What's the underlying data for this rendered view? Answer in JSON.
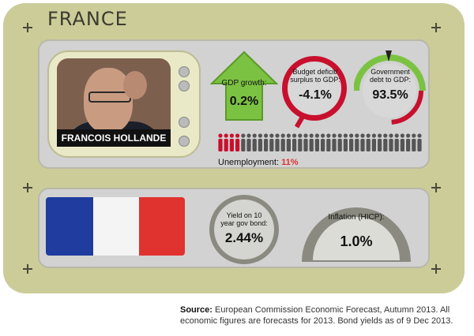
{
  "country": "FRANCE",
  "leader": {
    "name": "FRANCOIS HOLLANDE"
  },
  "gdp_growth": {
    "label": "GDP growth:",
    "value": "0.2%"
  },
  "budget": {
    "label_line1": "Budget deficit/",
    "label_line2": "surplus to GDP:",
    "value": "-4.1%"
  },
  "debt": {
    "label_line1": "Government",
    "label_line2": "debt to GDP:",
    "value": "93.5%"
  },
  "unemployment": {
    "label": "Unemployment:",
    "value": "11%",
    "value_fraction": 0.11
  },
  "bond_yield": {
    "label_line1": "Yield on 10",
    "label_line2": "year gov bond:",
    "value": "2.44%"
  },
  "inflation": {
    "label": "Inflation (HICP):",
    "value": "1.0%"
  },
  "source": {
    "prefix": "Source:",
    "text": " European Commission Economic Forecast, Autumn 2013. All economic figures are forecasts for 2013. Bond yields as of 9 Dec 2013."
  },
  "colors": {
    "card": "#cccc99",
    "green": "#7cc242",
    "red": "#c8102e",
    "flag_blue": "#1f3c9e",
    "flag_red": "#e0322e"
  },
  "icons": [
    "person-icon",
    "up-arrow-icon",
    "gauge-icon",
    "flag-icon"
  ]
}
